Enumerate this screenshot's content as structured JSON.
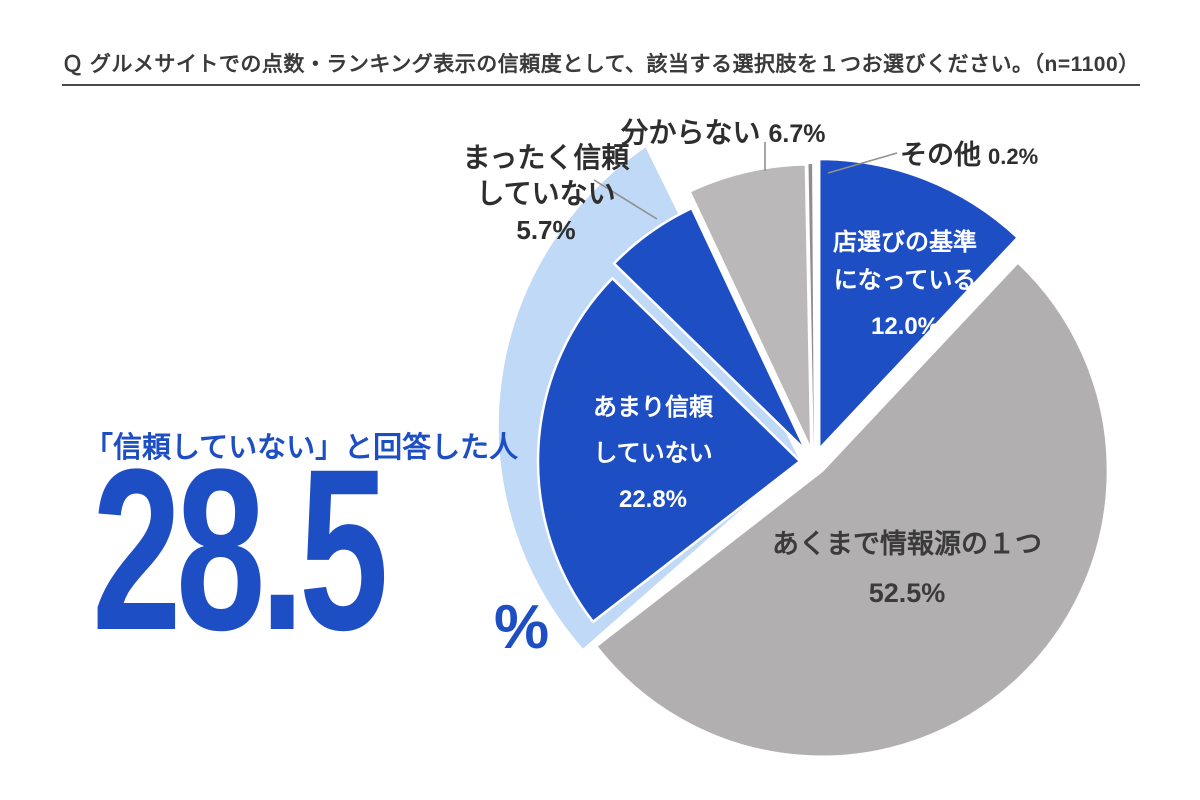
{
  "title": "Ｑ グルメサイトでの点数・ランキング表示の信頼度として、該当する選択肢を１つお選びください。（n=1100）",
  "callout": {
    "heading": "「信頼していない」と回答した人",
    "value": "28.5",
    "unit": "%"
  },
  "colors": {
    "dark_blue": "#1e4ec4",
    "light_blue": "#c0d9f7",
    "gray_main": "#b1afaf",
    "gray_light": "#bab8b8",
    "gray_dark_sliver": "#8f8d8d",
    "leader_line": "#909090",
    "text_dark": "#2e2e2e"
  },
  "chart_data": {
    "type": "pie",
    "title": "グルメサイトでの点数・ランキング表示の信頼度",
    "n_label": "n=1100",
    "unit": "%",
    "start_angle_deg": 0,
    "direction": "clockwise",
    "legend_position": "none",
    "slices": [
      {
        "label": "店選びの基準になっている",
        "value": 12.0,
        "pct": "12.0%",
        "color": "#1e4ec4",
        "text_color": "#ffffff",
        "lines": [
          "店選びの基準",
          "になっている"
        ]
      },
      {
        "label": "あくまで情報源の１つ",
        "value": 52.5,
        "pct": "52.5%",
        "color": "#b1afaf",
        "text_color": "#3b3b3b",
        "lines": [
          "あくまで情報源の１つ"
        ]
      },
      {
        "label": "あまり信頼していない",
        "value": 22.8,
        "pct": "22.8%",
        "color": "#1e4ec4",
        "text_color": "#ffffff",
        "lines": [
          "あまり信頼",
          "していない"
        ]
      },
      {
        "label": "まったく信頼していない",
        "value": 5.7,
        "pct": "5.7%",
        "color": "#1e4ec4",
        "text_color": "#2e2e2e",
        "lines": [
          "まったく信頼",
          "していない"
        ]
      },
      {
        "label": "分からない",
        "value": 6.7,
        "pct": "6.7%",
        "color": "#bab8b8",
        "text_color": "#2e2e2e",
        "lines": [
          "分からない"
        ]
      },
      {
        "label": "その他",
        "value": 0.2,
        "pct": "0.2%",
        "color": "#8f8d8d",
        "text_color": "#2e2e2e",
        "lines": [
          "その他"
        ]
      }
    ],
    "highlight_group": {
      "label": "「信頼していない」と回答した人",
      "members": [
        "あまり信頼していない",
        "まったく信頼していない"
      ],
      "value": 28.5,
      "pct": "28.5%",
      "color": "#c0d9f7"
    }
  }
}
